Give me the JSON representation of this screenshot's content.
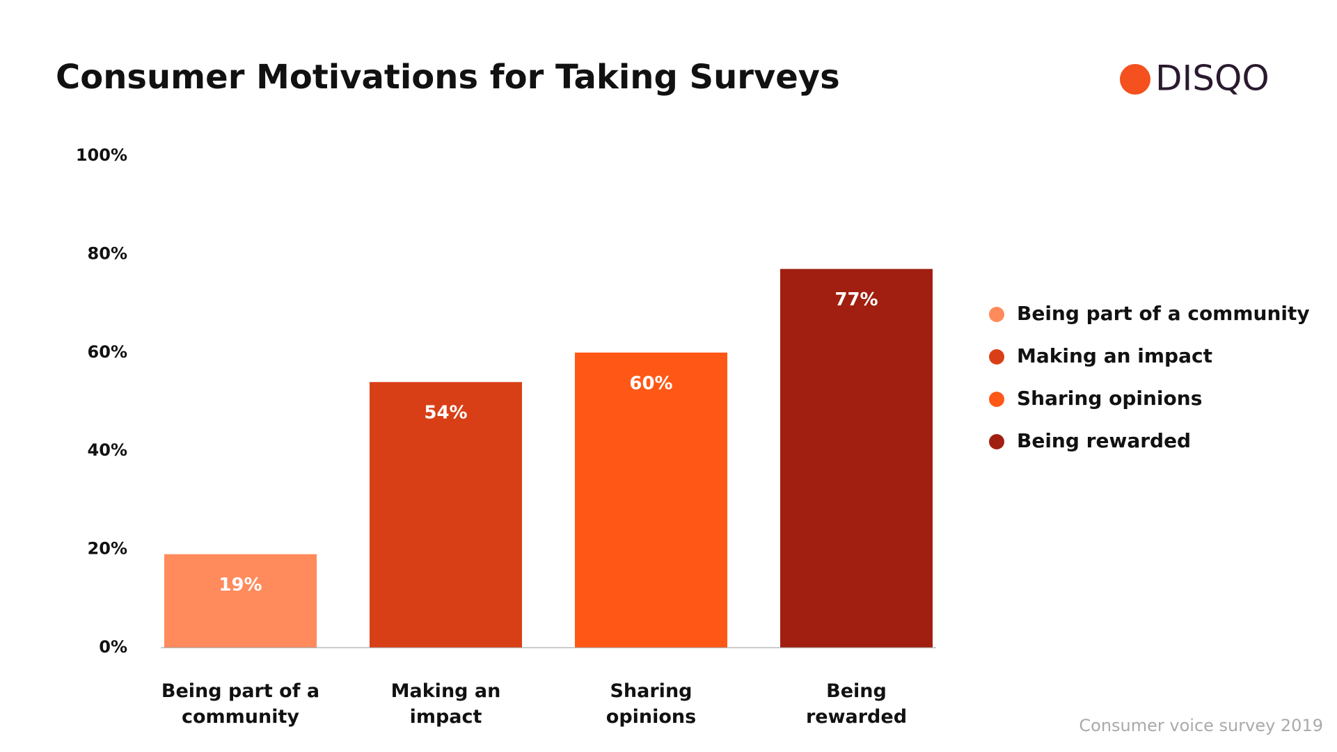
{
  "chart_data": {
    "type": "bar",
    "title": "Consumer Motivations for Taking Surveys",
    "logo": "DISQO",
    "categories": [
      "Being part of a community",
      "Making an impact",
      "Sharing opinions",
      "Being rewarded"
    ],
    "values": [
      19,
      54,
      60,
      77
    ],
    "value_labels": [
      "19%",
      "54%",
      "60%",
      "77%"
    ],
    "colors": [
      "#ff8a5c",
      "#d93f16",
      "#ff5716",
      "#a11f10"
    ],
    "ylim": [
      0,
      100
    ],
    "yticks": [
      {
        "value": 0,
        "label": "0%"
      },
      {
        "value": 20,
        "label": "20%"
      },
      {
        "value": 40,
        "label": "40%"
      },
      {
        "value": 60,
        "label": "60%"
      },
      {
        "value": 80,
        "label": "80%"
      },
      {
        "value": 100,
        "label": "100%"
      }
    ],
    "legend": "right",
    "source": "Consumer voice survey 2019"
  }
}
